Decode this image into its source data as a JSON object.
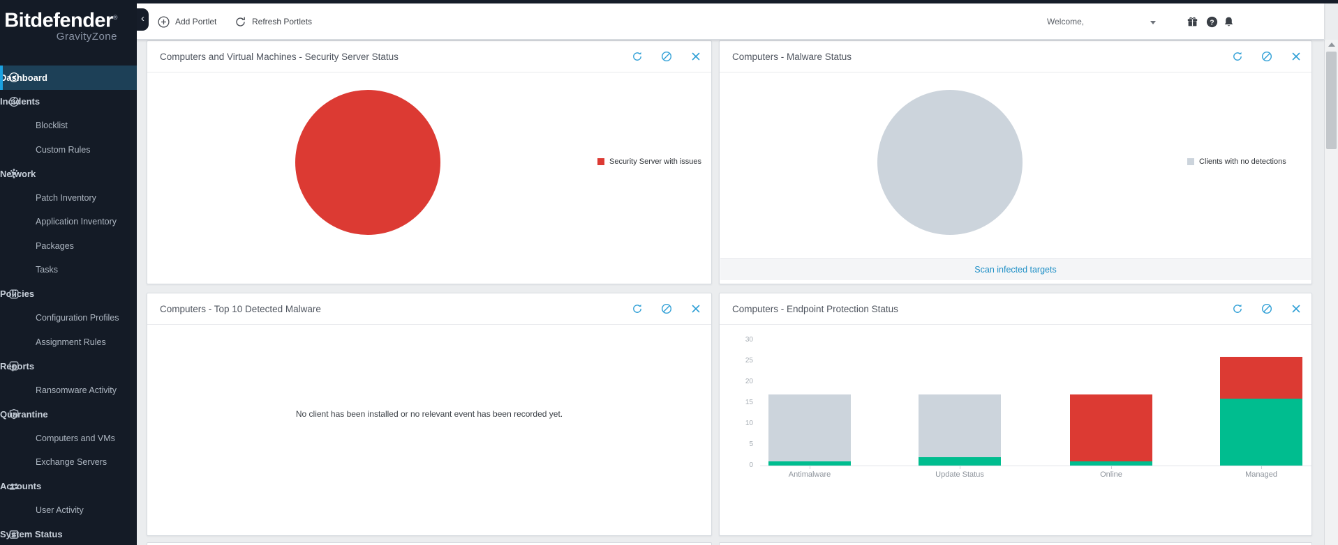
{
  "brand": {
    "name": "Bitdefender",
    "registered": "®",
    "product": "GravityZone"
  },
  "topbar": {
    "collapse": "‹",
    "add_portlet": "Add Portlet",
    "refresh_portlets": "Refresh Portlets",
    "welcome": "Welcome,"
  },
  "sidebar": {
    "items": [
      {
        "label": "Dashboard",
        "level": "top",
        "icon": "dashboard",
        "active": true
      },
      {
        "label": "Incidents",
        "level": "top",
        "icon": "incidents"
      },
      {
        "label": "Blocklist",
        "level": "sub"
      },
      {
        "label": "Custom Rules",
        "level": "sub"
      },
      {
        "label": "Network",
        "level": "top",
        "icon": "network"
      },
      {
        "label": "Patch Inventory",
        "level": "sub"
      },
      {
        "label": "Application Inventory",
        "level": "sub"
      },
      {
        "label": "Packages",
        "level": "sub"
      },
      {
        "label": "Tasks",
        "level": "sub"
      },
      {
        "label": "Policies",
        "level": "top",
        "icon": "policies"
      },
      {
        "label": "Configuration Profiles",
        "level": "sub"
      },
      {
        "label": "Assignment Rules",
        "level": "sub"
      },
      {
        "label": "Reports",
        "level": "top",
        "icon": "reports"
      },
      {
        "label": "Ransomware Activity",
        "level": "sub"
      },
      {
        "label": "Quarantine",
        "level": "top",
        "icon": "quarantine"
      },
      {
        "label": "Computers and VMs",
        "level": "sub"
      },
      {
        "label": "Exchange Servers",
        "level": "sub"
      },
      {
        "label": "Accounts",
        "level": "top",
        "icon": "accounts"
      },
      {
        "label": "User Activity",
        "level": "sub"
      },
      {
        "label": "System Status",
        "level": "top",
        "icon": "system-status"
      }
    ]
  },
  "portlets": {
    "security_server": {
      "title": "Computers and Virtual Machines - Security Server Status"
    },
    "malware_status": {
      "title": "Computers - Malware Status",
      "action_link": "Scan infected targets"
    },
    "top_malware": {
      "title": "Computers - Top 10 Detected Malware",
      "empty_message": "No client has been installed or no relevant event has been recorded yet."
    },
    "endpoint_protection": {
      "title": "Computers - Endpoint Protection Status"
    }
  },
  "chart_data": [
    {
      "type": "pie",
      "title": "Computers and Virtual Machines - Security Server Status",
      "slices": [
        {
          "label": "Security Server with issues",
          "value": 100,
          "color": "#dc3a33"
        }
      ],
      "legend_position": "right"
    },
    {
      "type": "pie",
      "title": "Computers - Malware Status",
      "slices": [
        {
          "label": "Clients with no detections",
          "value": 100,
          "color": "#ccd4dc"
        }
      ],
      "legend_position": "right"
    },
    {
      "type": "bar",
      "stacked": true,
      "title": "Computers - Endpoint Protection Status",
      "categories": [
        "Antimalware",
        "Update Status",
        "Online",
        "Managed"
      ],
      "series": [
        {
          "name": "green",
          "color": "#00bd8f",
          "values": [
            1,
            2,
            1,
            16
          ]
        },
        {
          "name": "gray",
          "color": "#ccd4dc",
          "values": [
            16,
            15,
            0,
            0
          ]
        },
        {
          "name": "red",
          "color": "#dc3a33",
          "values": [
            0,
            0,
            16,
            10
          ]
        }
      ],
      "xlabel": "",
      "ylabel": "",
      "ylim": [
        0,
        30
      ],
      "yticks": [
        0,
        5,
        10,
        15,
        20,
        25,
        30
      ],
      "grid": false,
      "legend_position": "none"
    }
  ],
  "colors": {
    "accent_blue": "#2f9fd6",
    "link_blue": "#1e8fc6",
    "sidebar_active": "#1ba1e0",
    "red": "#dc3a33",
    "green": "#00bd8f",
    "gray": "#ccd4dc"
  }
}
